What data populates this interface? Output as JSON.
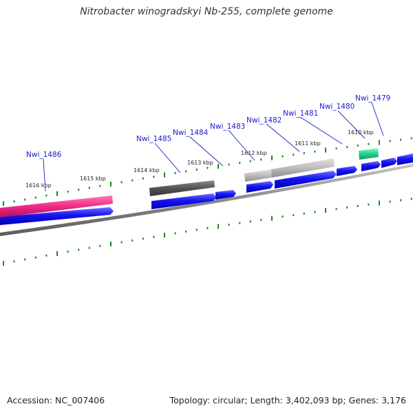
{
  "title": "Nitrobacter winogradskyi Nb-255, complete genome",
  "footer": {
    "accession": "Accession: NC_007406",
    "summary": "Topology: circular; Length: 3,402,093 bp; Genes: 3,176"
  },
  "colors": {
    "forward_gene": "#1010e0",
    "backbone": "#8a8a8a",
    "tick": "#1a8a1a",
    "label": "#1a1acc",
    "pink_feature": "#e8207a",
    "green_feature": "#22d08a",
    "dark_gray_feature": "#555555",
    "light_gray_feature": "#bbbbbb"
  },
  "scale_labels": [
    "1616 kbp",
    "1615 kbp",
    "1614 kbp",
    "1613 kbp",
    "1612 kbp",
    "1611 kbp",
    "1610 kbp"
  ],
  "gene_labels": [
    "Nwi_1486",
    "Nwi_1485",
    "Nwi_1484",
    "Nwi_1483",
    "Nwi_1482",
    "Nwi_1481",
    "Nwi_1480",
    "Nwi_1479"
  ]
}
